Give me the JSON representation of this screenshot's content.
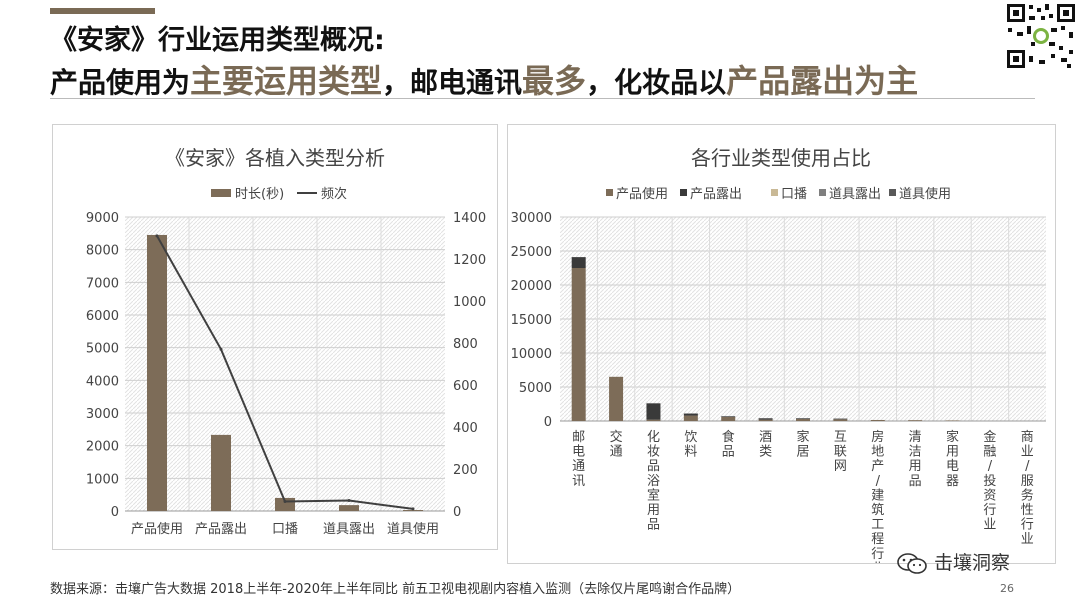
{
  "header": {
    "title_line1": "《安家》行业运用类型概况:",
    "title_line2_parts": [
      {
        "text": "产品使用为",
        "highlight": false
      },
      {
        "text": "主要运用类型",
        "highlight": true
      },
      {
        "text": "，邮电通讯",
        "highlight": false
      },
      {
        "text": "最多",
        "highlight": true
      },
      {
        "text": "，化妆品以",
        "highlight": false
      },
      {
        "text": "产品露出为主",
        "highlight": true
      }
    ]
  },
  "colors": {
    "accent": "#7a6a55",
    "bar_brown": "#7d6c58",
    "bar_dark": "#3a3a3a",
    "bar_tan": "#c9b996",
    "bar_gray": "#7f7f7f",
    "bar_slate": "#595959",
    "line": "#404040"
  },
  "chart_data": [
    {
      "type": "bar",
      "title": "《安家》各植入类型分析",
      "categories": [
        "产品使用",
        "产品露出",
        "口播",
        "道具露出",
        "道具使用"
      ],
      "series": [
        {
          "name": "时长(秒)",
          "kind": "bar",
          "axis": "left",
          "values": [
            8450,
            2330,
            400,
            180,
            30
          ]
        },
        {
          "name": "频次",
          "kind": "line",
          "axis": "right",
          "values": [
            1310,
            770,
            45,
            50,
            10
          ]
        }
      ],
      "ylim_left": [
        0,
        9000
      ],
      "yticks_left": [
        0,
        1000,
        2000,
        3000,
        4000,
        5000,
        6000,
        7000,
        8000,
        9000
      ],
      "ylim_right": [
        0,
        1400
      ],
      "yticks_right": [
        0,
        200,
        400,
        600,
        800,
        1000,
        1200,
        1400
      ],
      "legend": "top",
      "grid": true
    },
    {
      "type": "bar",
      "stacked": true,
      "title": "各行业类型使用占比",
      "categories": [
        "邮电通讯",
        "交通",
        "化妆品浴室用品",
        "饮料",
        "食品",
        "酒类",
        "家居",
        "互联网",
        "房地产/建筑工程行业",
        "清洁用品",
        "家用电器",
        "金融/投资行业",
        "商业/服务性行业"
      ],
      "series": [
        {
          "name": "产品使用",
          "values": [
            22500,
            6500,
            200,
            800,
            600,
            200,
            300,
            250,
            150,
            120,
            80,
            0,
            0
          ]
        },
        {
          "name": "产品露出",
          "values": [
            1600,
            0,
            2400,
            300,
            100,
            200,
            100,
            100,
            0,
            0,
            0,
            0,
            0
          ]
        },
        {
          "name": "口播",
          "values": [
            0,
            0,
            0,
            0,
            0,
            0,
            0,
            0,
            0,
            0,
            0,
            0,
            0
          ]
        },
        {
          "name": "道具露出",
          "values": [
            0,
            0,
            0,
            0,
            0,
            0,
            0,
            0,
            0,
            0,
            0,
            0,
            0
          ]
        },
        {
          "name": "道具使用",
          "values": [
            0,
            0,
            0,
            0,
            0,
            0,
            0,
            0,
            0,
            0,
            0,
            0,
            0
          ]
        }
      ],
      "ylim": [
        0,
        30000
      ],
      "yticks": [
        0,
        5000,
        10000,
        15000,
        20000,
        25000,
        30000
      ],
      "legend": "top",
      "grid": true
    }
  ],
  "footer": {
    "source": "数据来源：击壤广告大数据  2018上半年-2020年上半年同比 前五卫视电视剧内容植入监测（去除仅片尾鸣谢合作品牌）",
    "brand": "击壤洞察",
    "page_number": "26"
  },
  "icons": {
    "qr": "qr-code-icon",
    "wechat": "wechat-icon"
  }
}
